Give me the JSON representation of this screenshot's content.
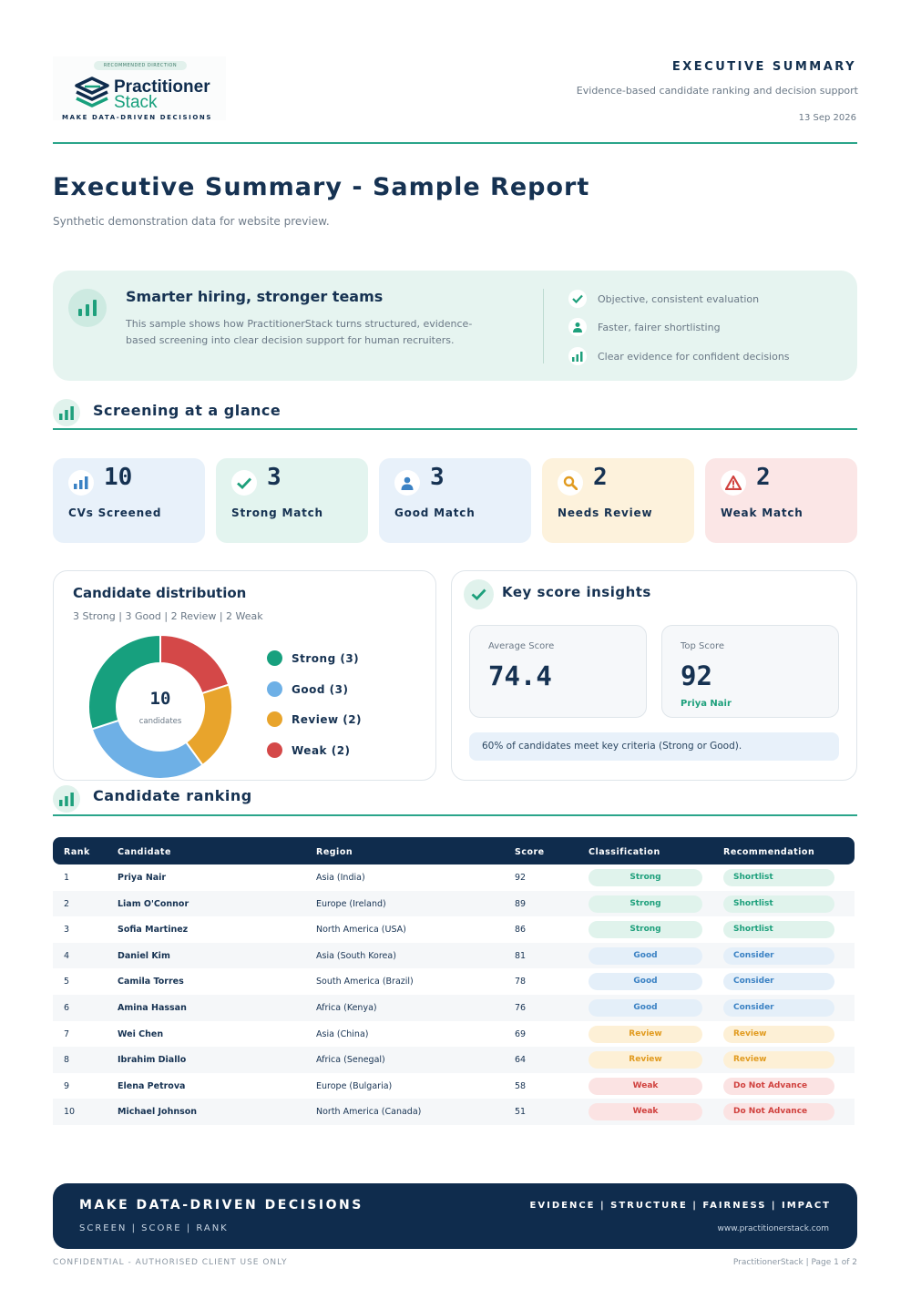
{
  "logo": {
    "pill": "RECOMMENDED DIRECTION",
    "name_line1": "Practitioner",
    "name_line2": "Stack",
    "tagline": "MAKE DATA-DRIVEN DECISIONS"
  },
  "header": {
    "title": "EXECUTIVE SUMMARY",
    "subtitle": "Evidence-based candidate ranking and decision support",
    "date": "13 Sep 2026"
  },
  "report": {
    "title": "Executive Summary - Sample Report",
    "subtitle": "Synthetic demonstration data for website preview."
  },
  "banner": {
    "heading": "Smarter hiring, stronger teams",
    "text": "This sample shows how PractitionerStack turns structured, evidence-based screening into clear decision support for human recruiters.",
    "bullets": [
      {
        "icon": "check-icon",
        "text": "Objective, consistent evaluation"
      },
      {
        "icon": "person-icon",
        "text": "Faster, fairer shortlisting"
      },
      {
        "icon": "bar-chart-icon",
        "text": "Clear evidence for confident decisions"
      }
    ]
  },
  "sections": {
    "glance": "Screening at a glance",
    "ranking": "Candidate ranking"
  },
  "stats": [
    {
      "icon": "bar-chart-icon",
      "value": "10",
      "label": "CVs Screened",
      "bg": "#e8f1fa",
      "color": "#3b82c4"
    },
    {
      "icon": "check-icon",
      "value": "3",
      "label": "Strong Match",
      "bg": "#e3f4ef",
      "color": "#1ea07c"
    },
    {
      "icon": "person-icon",
      "value": "3",
      "label": "Good Match",
      "bg": "#e8f1fa",
      "color": "#3b82c4"
    },
    {
      "icon": "search-icon",
      "value": "2",
      "label": "Needs Review",
      "bg": "#fdf2dc",
      "color": "#e19b20"
    },
    {
      "icon": "warning-icon",
      "value": "2",
      "label": "Weak Match",
      "bg": "#fbe6e6",
      "color": "#d0413e"
    }
  ],
  "distribution": {
    "title": "Candidate distribution",
    "subtitle": "3 Strong | 3 Good | 2 Review | 2 Weak",
    "center_value": "10",
    "center_label": "candidates",
    "legend": [
      {
        "label": "Strong (3)",
        "color": "#17a07e"
      },
      {
        "label": "Good (3)",
        "color": "#6eb0e6"
      },
      {
        "label": "Review (2)",
        "color": "#e8a42c"
      },
      {
        "label": "Weak (2)",
        "color": "#d44848"
      }
    ]
  },
  "chart_data": {
    "type": "pie",
    "title": "Candidate distribution",
    "categories": [
      "Weak",
      "Review",
      "Good",
      "Strong"
    ],
    "values": [
      2,
      2,
      3,
      3
    ],
    "colors": [
      "#d44848",
      "#e8a42c",
      "#6eb0e6",
      "#17a07e"
    ]
  },
  "insights": {
    "title": "Key score insights",
    "average_label": "Average Score",
    "average_value": "74.4",
    "top_label": "Top Score",
    "top_value": "92",
    "top_name": "Priya Nair",
    "note": "60% of candidates meet key criteria (Strong or Good)."
  },
  "table": {
    "headers": [
      "Rank",
      "Candidate",
      "Region",
      "Score",
      "Classification",
      "Recommendation"
    ],
    "rows": [
      [
        "1",
        "Priya Nair",
        "Asia (India)",
        "92",
        "Strong",
        "Shortlist"
      ],
      [
        "2",
        "Liam O'Connor",
        "Europe (Ireland)",
        "89",
        "Strong",
        "Shortlist"
      ],
      [
        "3",
        "Sofia Martinez",
        "North America (USA)",
        "86",
        "Strong",
        "Shortlist"
      ],
      [
        "4",
        "Daniel Kim",
        "Asia (South Korea)",
        "81",
        "Good",
        "Consider"
      ],
      [
        "5",
        "Camila Torres",
        "South America (Brazil)",
        "78",
        "Good",
        "Consider"
      ],
      [
        "6",
        "Amina Hassan",
        "Africa (Kenya)",
        "76",
        "Good",
        "Consider"
      ],
      [
        "7",
        "Wei Chen",
        "Asia (China)",
        "69",
        "Review",
        "Review"
      ],
      [
        "8",
        "Ibrahim Diallo",
        "Africa (Senegal)",
        "64",
        "Review",
        "Review"
      ],
      [
        "9",
        "Elena Petrova",
        "Europe (Bulgaria)",
        "58",
        "Weak",
        "Do Not Advance"
      ],
      [
        "10",
        "Michael Johnson",
        "North America (Canada)",
        "51",
        "Weak",
        "Do Not Advance"
      ]
    ],
    "pill_colors": {
      "Strong": {
        "bg": "#e0f3ec",
        "fg": "#1ea07c"
      },
      "Good": {
        "bg": "#e4eff9",
        "fg": "#3b82c4"
      },
      "Review": {
        "bg": "#fdf0d6",
        "fg": "#e19b20"
      },
      "Weak": {
        "bg": "#fbe3e3",
        "fg": "#d0413e"
      }
    }
  },
  "footer": {
    "heading": "MAKE DATA-DRIVEN DECISIONS",
    "sub": "SCREEN | SCORE | RANK",
    "values": "EVIDENCE | STRUCTURE | FAIRNESS | IMPACT",
    "url": "www.practitionerstack.com",
    "confidential": "CONFIDENTIAL - AUTHORISED CLIENT USE ONLY",
    "page": "PractitionerStack | Page 1 of 2"
  }
}
